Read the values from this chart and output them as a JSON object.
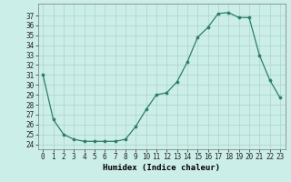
{
  "x": [
    0,
    1,
    2,
    3,
    4,
    5,
    6,
    7,
    8,
    9,
    10,
    11,
    12,
    13,
    14,
    15,
    16,
    17,
    18,
    19,
    20,
    21,
    22,
    23
  ],
  "y": [
    31,
    26.5,
    25,
    24.5,
    24.3,
    24.3,
    24.3,
    24.3,
    24.5,
    25.8,
    27.5,
    29,
    29.2,
    30.3,
    32.3,
    34.8,
    35.8,
    37.2,
    37.3,
    36.8,
    36.8,
    33.0,
    30.5,
    28.7
  ],
  "xlabel": "Humidex (Indice chaleur)",
  "ylim": [
    23.5,
    38.2
  ],
  "xlim": [
    -0.5,
    23.5
  ],
  "yticks": [
    24,
    25,
    26,
    27,
    28,
    29,
    30,
    31,
    32,
    33,
    34,
    35,
    36,
    37
  ],
  "xtick_labels": [
    "0",
    "1",
    "2",
    "3",
    "4",
    "5",
    "6",
    "7",
    "8",
    "9",
    "10",
    "11",
    "12",
    "13",
    "14",
    "15",
    "16",
    "17",
    "18",
    "19",
    "20",
    "21",
    "22",
    "23"
  ],
  "line_color": "#2d7d6b",
  "bg_color": "#cceee8",
  "grid_color": "#aad4cc",
  "tick_fontsize": 5.5,
  "xlabel_fontsize": 6.5
}
